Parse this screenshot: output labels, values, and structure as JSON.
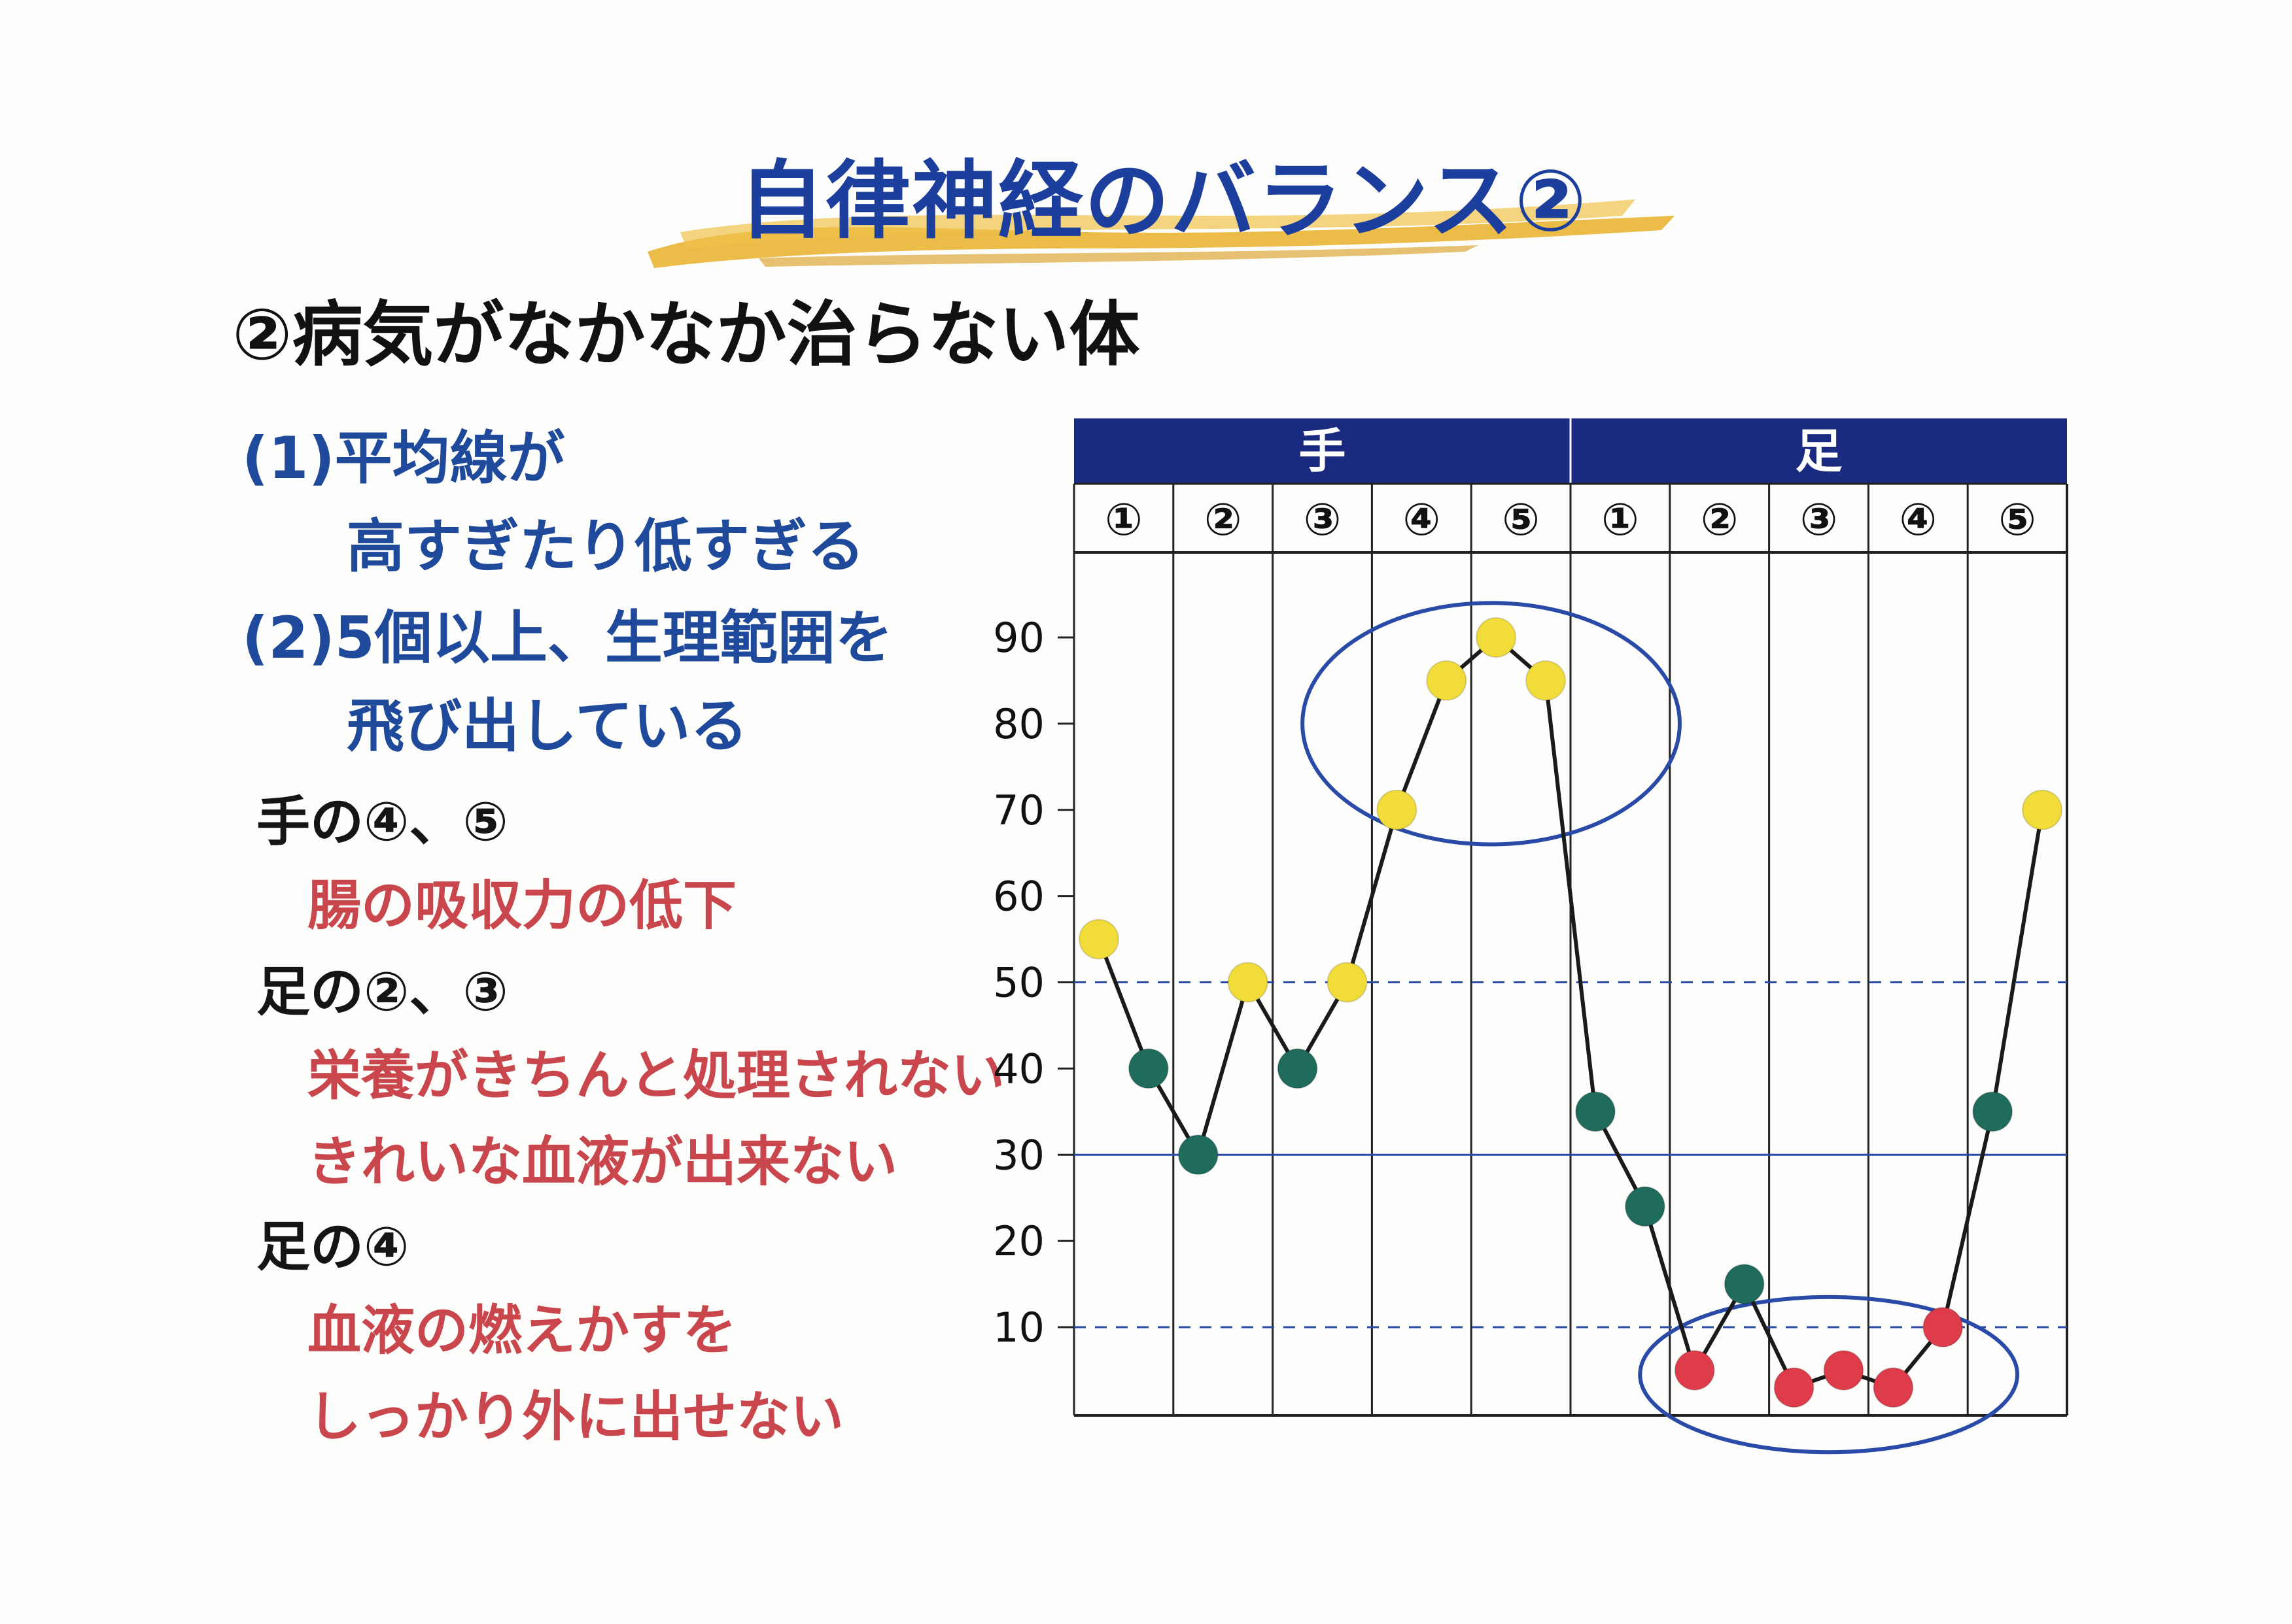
{
  "page": {
    "title": "自律神経のバランス②",
    "subtitle": "②病気がなかなか治らない体"
  },
  "notes": {
    "n1_line1": "(1)平均線が",
    "n1_line2": "高すぎたり低すぎる",
    "n2_line1": "(2)5個以上、生理範囲を",
    "n2_line2": "飛び出している",
    "hand45": "手の④、⑤",
    "hand45_desc": "腸の吸収力の低下",
    "foot23": "足の②、③",
    "foot23_desc1": "栄養がきちんと処理されない",
    "foot23_desc2": "きれいな血液が出来ない",
    "foot4": "足の④",
    "foot4_desc1": "血液の燃えかすを",
    "foot4_desc2": "しっかり外に出せない"
  },
  "colors": {
    "title": "#1c3f9e",
    "header_band": "#1a2a80",
    "brush": "#e8b028",
    "yellow_point": "#f2dc3a",
    "teal_point": "#1f6b5c",
    "red_point": "#de3c4a",
    "ellipse": "#2a4aa8"
  },
  "chart_data": {
    "type": "line",
    "groups": [
      {
        "name": "手",
        "columns": [
          "①",
          "②",
          "③",
          "④",
          "⑤"
        ]
      },
      {
        "name": "足",
        "columns": [
          "①",
          "②",
          "③",
          "④",
          "⑤"
        ]
      }
    ],
    "ylim": [
      0,
      100
    ],
    "yticks": [
      10,
      20,
      30,
      40,
      50,
      60,
      70,
      80,
      90
    ],
    "reference_lines": [
      {
        "value": 50,
        "style": "dashed"
      },
      {
        "value": 30,
        "style": "solid"
      },
      {
        "value": 10,
        "style": "dashed"
      }
    ],
    "points": [
      {
        "x": 0.25,
        "y": 55,
        "color": "yellow"
      },
      {
        "x": 0.75,
        "y": 40,
        "color": "teal"
      },
      {
        "x": 1.25,
        "y": 30,
        "color": "teal"
      },
      {
        "x": 1.75,
        "y": 50,
        "color": "yellow"
      },
      {
        "x": 2.25,
        "y": 40,
        "color": "teal"
      },
      {
        "x": 2.75,
        "y": 50,
        "color": "yellow"
      },
      {
        "x": 3.25,
        "y": 70,
        "color": "yellow"
      },
      {
        "x": 3.75,
        "y": 85,
        "color": "yellow"
      },
      {
        "x": 4.25,
        "y": 90,
        "color": "yellow"
      },
      {
        "x": 4.75,
        "y": 85,
        "color": "yellow"
      },
      {
        "x": 5.25,
        "y": 35,
        "color": "teal"
      },
      {
        "x": 5.75,
        "y": 24,
        "color": "teal"
      },
      {
        "x": 6.25,
        "y": 5,
        "color": "red"
      },
      {
        "x": 6.75,
        "y": 15,
        "color": "teal"
      },
      {
        "x": 7.25,
        "y": 3,
        "color": "red"
      },
      {
        "x": 7.75,
        "y": 5,
        "color": "red"
      },
      {
        "x": 8.25,
        "y": 3,
        "color": "red"
      },
      {
        "x": 8.75,
        "y": 10,
        "color": "red"
      },
      {
        "x": 9.25,
        "y": 35,
        "color": "teal"
      },
      {
        "x": 9.75,
        "y": 70,
        "color": "yellow"
      }
    ],
    "highlight_ellipses": [
      {
        "x_center": 4.2,
        "y_center": 80,
        "x_radius": 1.9,
        "y_radius": 14
      },
      {
        "x_center": 7.6,
        "y_center": 4.5,
        "x_radius": 1.9,
        "y_radius": 9
      }
    ]
  }
}
